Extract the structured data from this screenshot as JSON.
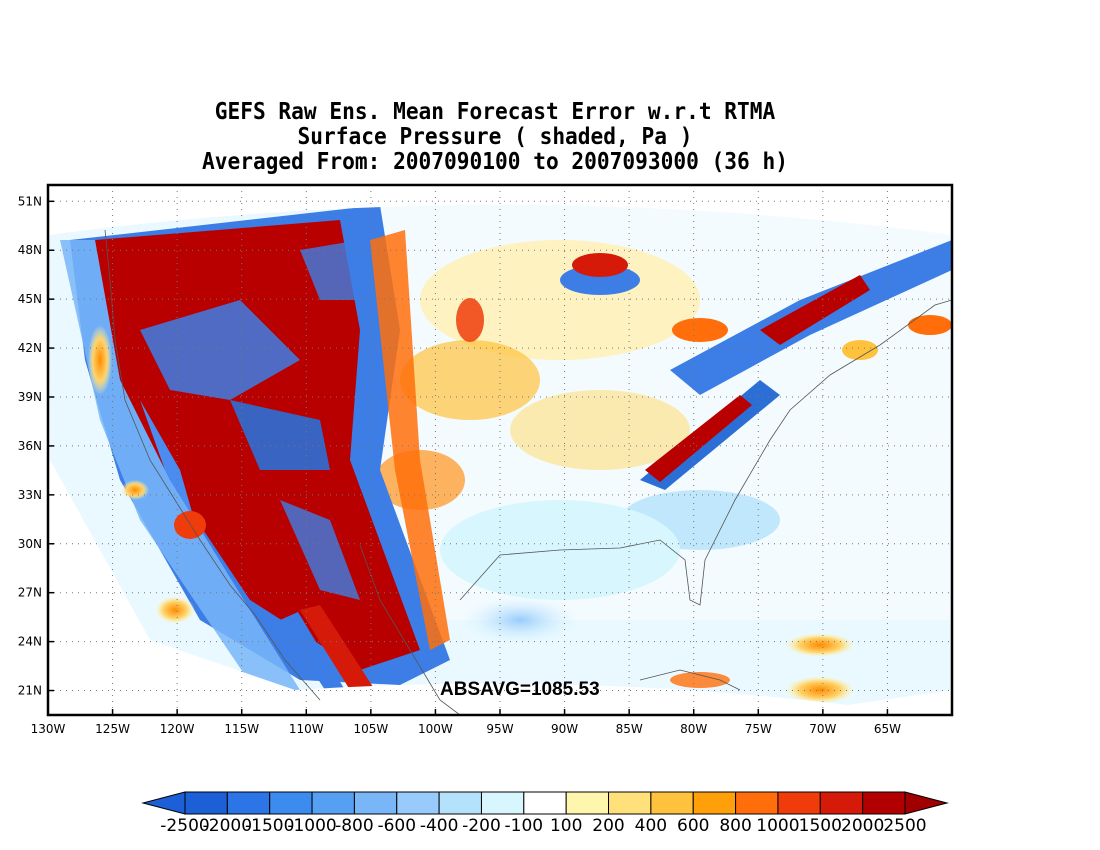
{
  "title": {
    "line1": "GEFS Raw Ens. Mean Forecast Error w.r.t RTMA",
    "line2": "Surface Pressure ( shaded, Pa )",
    "line3": "Averaged From: 2007090100 to 2007093000 (36 h)"
  },
  "annotation": "ABSAVG=1085.53",
  "map_extent": {
    "lon": [
      -130,
      -60
    ],
    "lat": [
      19.5,
      52
    ]
  },
  "lat_labels": [
    "51N",
    "48N",
    "45N",
    "42N",
    "39N",
    "36N",
    "33N",
    "30N",
    "27N",
    "24N",
    "21N"
  ],
  "lat_values": [
    51,
    48,
    45,
    42,
    39,
    36,
    33,
    30,
    27,
    24,
    21
  ],
  "lon_labels": [
    "130W",
    "125W",
    "120W",
    "115W",
    "110W",
    "105W",
    "100W",
    "95W",
    "90W",
    "85W",
    "80W",
    "75W",
    "70W",
    "65W"
  ],
  "lon_values": [
    -130,
    -125,
    -120,
    -115,
    -110,
    -105,
    -100,
    -95,
    -90,
    -85,
    -80,
    -75,
    -70,
    -65
  ],
  "colorbar": {
    "labels": [
      "-2500",
      "-2000",
      "-1500",
      "-1000",
      "-800",
      "-600",
      "-400",
      "-200",
      "-100",
      "100",
      "200",
      "400",
      "600",
      "800",
      "1000",
      "1500",
      "2000",
      "2500"
    ],
    "colors": [
      "#1d5fd6",
      "#2b75e6",
      "#3c8cf0",
      "#56a0f4",
      "#78b6f8",
      "#98cbfb",
      "#b4e2fc",
      "#d8f6fe",
      "#ffffff",
      "#fff6ad",
      "#ffe07a",
      "#ffc23c",
      "#ffa00a",
      "#ff6e0a",
      "#f03c0a",
      "#d61a0a",
      "#b20000"
    ],
    "low_arrow_color": "#1d5fd6",
    "high_arrow_color": "#a00000"
  },
  "colors": {
    "land_blue": "#3c7ee6",
    "land_red": "#b80000",
    "frame": "#000000"
  }
}
